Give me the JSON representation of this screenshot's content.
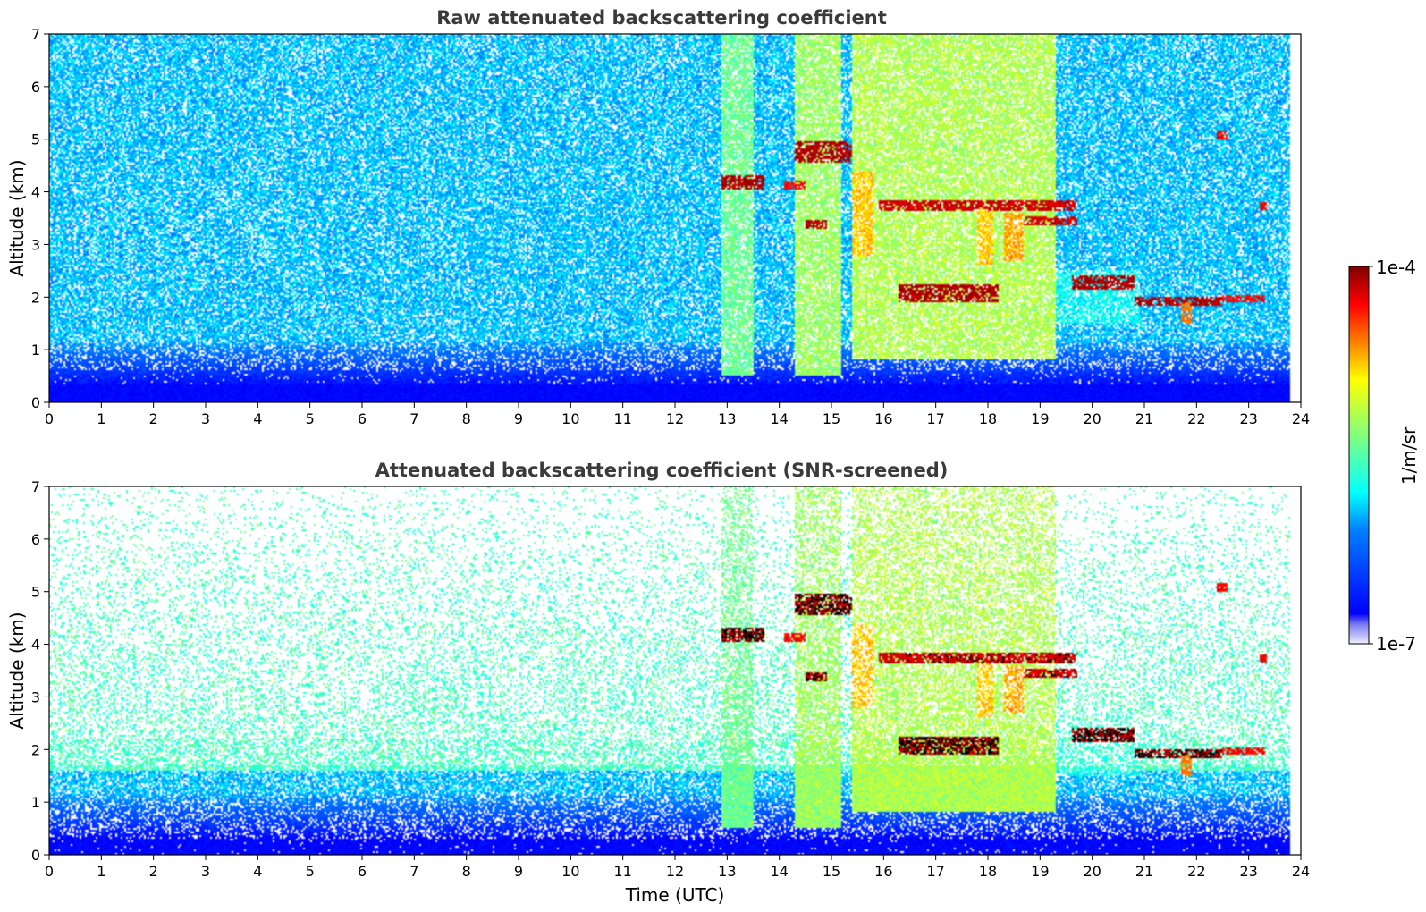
{
  "chart_data": [
    {
      "type": "heatmap",
      "title": "Raw attenuated backscattering coefficient",
      "xlabel": "",
      "ylabel": "Altitude (km)",
      "xlim": [
        0,
        24
      ],
      "ylim": [
        0,
        7
      ],
      "xticks": [
        "0",
        "1",
        "2",
        "3",
        "4",
        "5",
        "6",
        "7",
        "8",
        "9",
        "10",
        "11",
        "12",
        "13",
        "14",
        "15",
        "16",
        "17",
        "18",
        "19",
        "20",
        "21",
        "22",
        "23",
        "24"
      ],
      "yticks": [
        "0",
        "1",
        "2",
        "3",
        "4",
        "5",
        "6",
        "7"
      ],
      "data_end_time": 23.8,
      "layers": [
        {
          "t0": 12.9,
          "t1": 13.7,
          "z0": 4.05,
          "z1": 4.3,
          "level": 1.0
        },
        {
          "t0": 14.3,
          "t1": 15.4,
          "z0": 4.55,
          "z1": 4.95,
          "level": 1.0
        },
        {
          "t0": 14.1,
          "t1": 14.5,
          "z0": 4.05,
          "z1": 4.2,
          "level": 0.95
        },
        {
          "t0": 14.5,
          "t1": 14.9,
          "z0": 3.3,
          "z1": 3.45,
          "level": 1.0
        },
        {
          "t0": 15.9,
          "t1": 19.7,
          "z0": 3.65,
          "z1": 3.85,
          "level": 0.98
        },
        {
          "t0": 18.7,
          "t1": 19.7,
          "z0": 3.35,
          "z1": 3.55,
          "level": 0.98
        },
        {
          "t0": 16.3,
          "t1": 18.2,
          "z0": 1.9,
          "z1": 2.25,
          "level": 1.0
        },
        {
          "t0": 19.6,
          "t1": 20.8,
          "z0": 2.15,
          "z1": 2.4,
          "level": 1.0
        },
        {
          "t0": 20.8,
          "t1": 22.5,
          "z0": 1.85,
          "z1": 2.0,
          "level": 1.0
        },
        {
          "t0": 21.7,
          "t1": 21.9,
          "z0": 1.5,
          "z1": 1.9,
          "level": 0.85
        },
        {
          "t0": 22.5,
          "t1": 23.3,
          "z0": 1.9,
          "z1": 2.05,
          "level": 0.95
        },
        {
          "t0": 22.4,
          "t1": 22.6,
          "z0": 5.0,
          "z1": 5.15,
          "level": 0.95
        },
        {
          "t0": 23.2,
          "t1": 23.35,
          "z0": 3.65,
          "z1": 3.8,
          "level": 0.95
        }
      ],
      "enhanced_regions": [
        {
          "t0": 12.9,
          "t1": 13.5,
          "z0": 0.5,
          "z1": 7.0,
          "level": 0.55
        },
        {
          "t0": 14.3,
          "t1": 15.2,
          "z0": 0.5,
          "z1": 7.0,
          "level": 0.6
        },
        {
          "t0": 15.4,
          "t1": 19.3,
          "z0": 0.8,
          "z1": 7.0,
          "level": 0.62
        },
        {
          "t0": 19.0,
          "t1": 20.9,
          "z0": 1.5,
          "z1": 2.5,
          "level": 0.45
        },
        {
          "t0": 15.4,
          "t1": 15.8,
          "z0": 2.8,
          "z1": 4.4,
          "level": 0.75
        },
        {
          "t0": 17.8,
          "t1": 18.1,
          "z0": 2.6,
          "z1": 3.7,
          "level": 0.75
        },
        {
          "t0": 18.3,
          "t1": 18.7,
          "z0": 2.7,
          "z1": 3.6,
          "level": 0.78
        }
      ]
    },
    {
      "type": "heatmap",
      "title": "Attenuated backscattering coefficient (SNR-screened)",
      "xlabel": "Time (UTC)",
      "ylabel": "Altitude (km)",
      "xlim": [
        0,
        24
      ],
      "ylim": [
        0,
        7
      ],
      "xticks": [
        "0",
        "1",
        "2",
        "3",
        "4",
        "5",
        "6",
        "7",
        "8",
        "9",
        "10",
        "11",
        "12",
        "13",
        "14",
        "15",
        "16",
        "17",
        "18",
        "19",
        "20",
        "21",
        "22",
        "23",
        "24"
      ],
      "yticks": [
        "0",
        "1",
        "2",
        "3",
        "4",
        "5",
        "6",
        "7"
      ],
      "data_end_time": 23.8,
      "screening": "low-SNR pixels removed (white); saturated cloud cores shown black"
    }
  ],
  "colorbar": {
    "label": "1/m/sr",
    "max_label": "1e-4",
    "min_label": "1e-7",
    "colormap": "jet",
    "colors": [
      "#00007f",
      "#0000ff",
      "#007fff",
      "#00ffff",
      "#7fff7f",
      "#ffff00",
      "#ff7f00",
      "#ff0000",
      "#7f0000"
    ]
  }
}
